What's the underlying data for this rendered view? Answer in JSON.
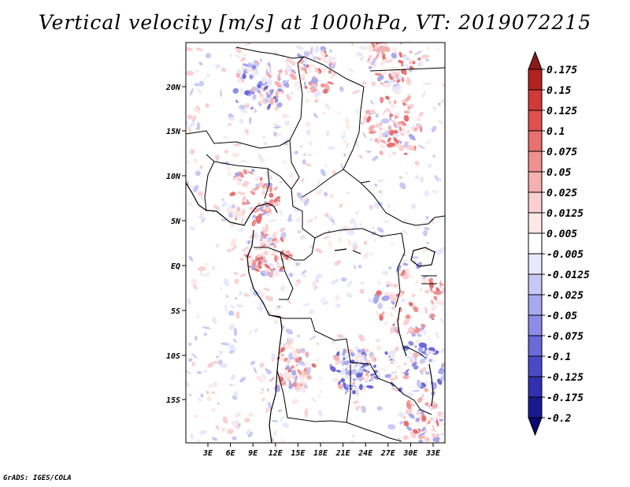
{
  "title": "Vertical velocity [m/s] at 1000hPa, VT: 2019072215",
  "credit": "GrADS: IGES/COLA",
  "map": {
    "lat_ticks": [
      "20N",
      "15N",
      "10N",
      "5N",
      "EQ",
      "5S",
      "10S",
      "15S"
    ],
    "lon_ticks": [
      "3E",
      "6E",
      "9E",
      "12E",
      "15E",
      "18E",
      "21E",
      "24E",
      "27E",
      "30E",
      "33E"
    ]
  },
  "colorbar": {
    "levels": [
      "0.175",
      "0.15",
      "0.125",
      "0.1",
      "0.075",
      "0.05",
      "0.025",
      "0.0125",
      "0.005",
      "-0.005",
      "-0.0125",
      "-0.025",
      "-0.05",
      "-0.075",
      "-0.1",
      "-0.125",
      "-0.175",
      "-0.2"
    ],
    "colors": [
      "#8b1a1a",
      "#b22222",
      "#d23a3a",
      "#e05050",
      "#e87070",
      "#f09090",
      "#f5b0b0",
      "#fad0d0",
      "#fde8e8",
      "#ffffff",
      "#e8e8fd",
      "#c8c8f5",
      "#a8a8f0",
      "#8c8ce8",
      "#6a6ad8",
      "#4a4ac8",
      "#3030b0",
      "#1a1a90",
      "#0a0a70"
    ]
  }
}
